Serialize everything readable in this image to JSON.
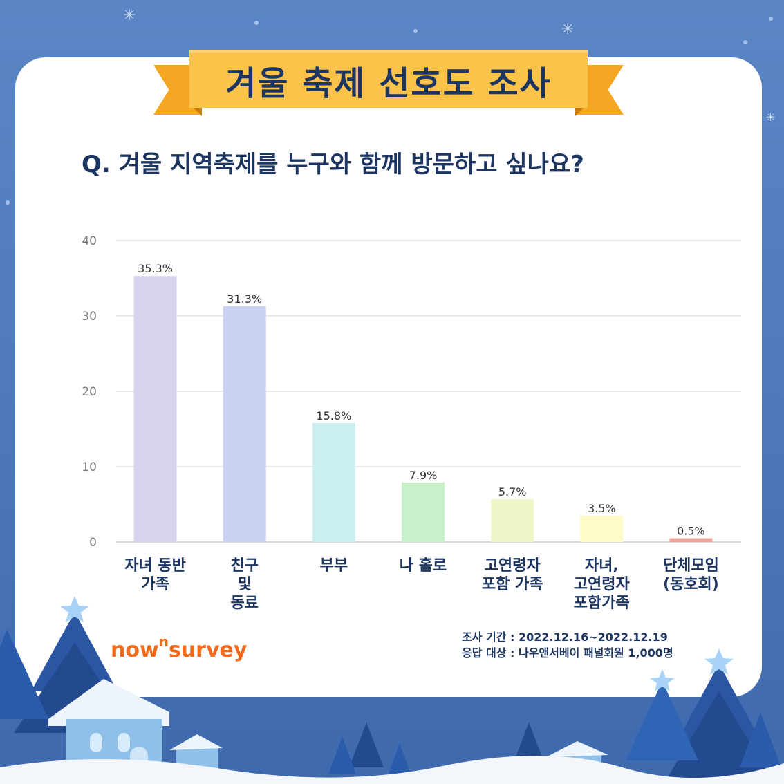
{
  "banner": {
    "title": "겨울 축제 선호도 조사"
  },
  "question": "Q. 겨울 지역축제를 누구와 함께 방문하고 싶나요?",
  "chart_data": {
    "type": "bar",
    "categories": [
      [
        "자녀 동반",
        "가족"
      ],
      [
        "친구",
        "및",
        "동료"
      ],
      [
        "부부"
      ],
      [
        "나 홀로"
      ],
      [
        "고연령자",
        "포함 가족"
      ],
      [
        "자녀,",
        "고연령자",
        "포함가족"
      ],
      [
        "단체모임",
        "(동호회)"
      ]
    ],
    "values": [
      35.3,
      31.3,
      15.8,
      7.9,
      5.7,
      3.5,
      0.5
    ],
    "value_labels": [
      "35.3%",
      "31.3%",
      "15.8%",
      "7.9%",
      "5.7%",
      "3.5%",
      "0.5%"
    ],
    "colors": [
      "#d8d4ee",
      "#cad4f2",
      "#caf0ef",
      "#caf0c9",
      "#eff6c8",
      "#fdfbc9",
      "#f0a29a"
    ],
    "ylim": [
      0,
      40
    ],
    "yticks": [
      0,
      10,
      20,
      30,
      40
    ],
    "grid": true,
    "xlabel": "",
    "ylabel": ""
  },
  "footer": {
    "logo_main": "now",
    "logo_sup": "n",
    "logo_tail": "survey",
    "period": "조사 기간 : 2022.12.16~2022.12.19",
    "target": "응답 대상 : 나우앤서베이 패널회원 1,000명"
  }
}
